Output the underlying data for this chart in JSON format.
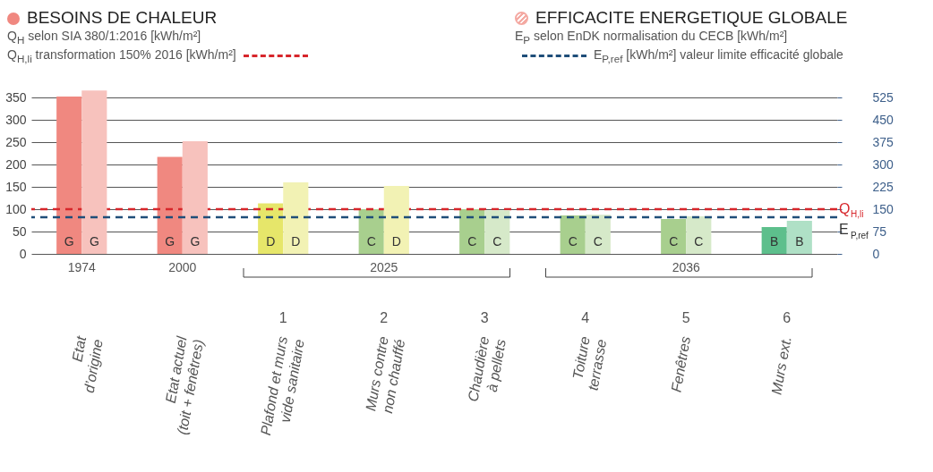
{
  "chart_data": {
    "type": "bar",
    "categories": [
      "Etat\nd’origine",
      "Etat actuel\n(toit + fenêtres)",
      "Plafond et murs\nvide sanitaire",
      "Murs contre\nnon chauffé",
      "Chaudière\nà pellets",
      "Toiture\nterrasse",
      "Fenêtres",
      "Murs ext."
    ],
    "series": [
      {
        "name": "BESOINS DE CHALEUR",
        "color": "#f08880",
        "values": [
          352,
          217,
          113,
          100,
          100,
          86,
          78,
          60
        ],
        "colors": [
          "#f08880",
          "#f08880",
          "#e6e66a",
          "#a8cf8e",
          "#a8cf8e",
          "#a8cf8e",
          "#a8cf8e",
          "#5dbf8c"
        ],
        "value_labels": [
          "G",
          "G",
          "D",
          "C",
          "C",
          "C",
          "C",
          "B"
        ]
      },
      {
        "name": "EFFICACITE ENERGETIQUE GLOBALE",
        "color": "#f4a9a2",
        "axis": "y2",
        "values": [
          548,
          378,
          240,
          228,
          146,
          131,
          126,
          111
        ],
        "colors": [
          "#f7c2bd",
          "#f7c2bd",
          "#f2f2b4",
          "#f2f2b4",
          "#d6e9c9",
          "#d6e9c9",
          "#d6e9c9",
          "#afe0c6"
        ],
        "value_labels": [
          "G",
          "G",
          "D",
          "D",
          "C",
          "C",
          "C",
          "B"
        ]
      }
    ],
    "ylabel": "Q$_{H}$ selon SIA 380/1:2016 [kWh/m²]",
    "y2label": "E$_{P}$ selon EnDK normalisation du CECB [kWh/m²]",
    "ylim": [
      0,
      370
    ],
    "yticks": [
      0,
      50,
      100,
      150,
      200,
      250,
      300,
      350
    ],
    "y2lim": [
      0,
      555
    ],
    "y2ticks": [
      0,
      75,
      150,
      225,
      300,
      375,
      450,
      525
    ],
    "ref_lines": [
      {
        "axis": "y",
        "value": 100,
        "label": "Q$_{H,li}$",
        "color": "#d7262b",
        "line_style": "dashed"
      },
      {
        "axis": "y2",
        "value": 123,
        "label": "E$_{P,ref}$",
        "color": "#1f4e79",
        "line_style": "dashed"
      }
    ],
    "annotations": [
      "Q$_{H,li}$ transformation 150% 2016 [kWh/m²]",
      "E$_{P,ref}$ [kWh/m²] valeur limite efficacité globale",
      "1974",
      "2000",
      "2025",
      "2036",
      "1",
      "2",
      "3",
      "4",
      "5",
      "6"
    ],
    "grid": "y",
    "legend": "top"
  }
}
